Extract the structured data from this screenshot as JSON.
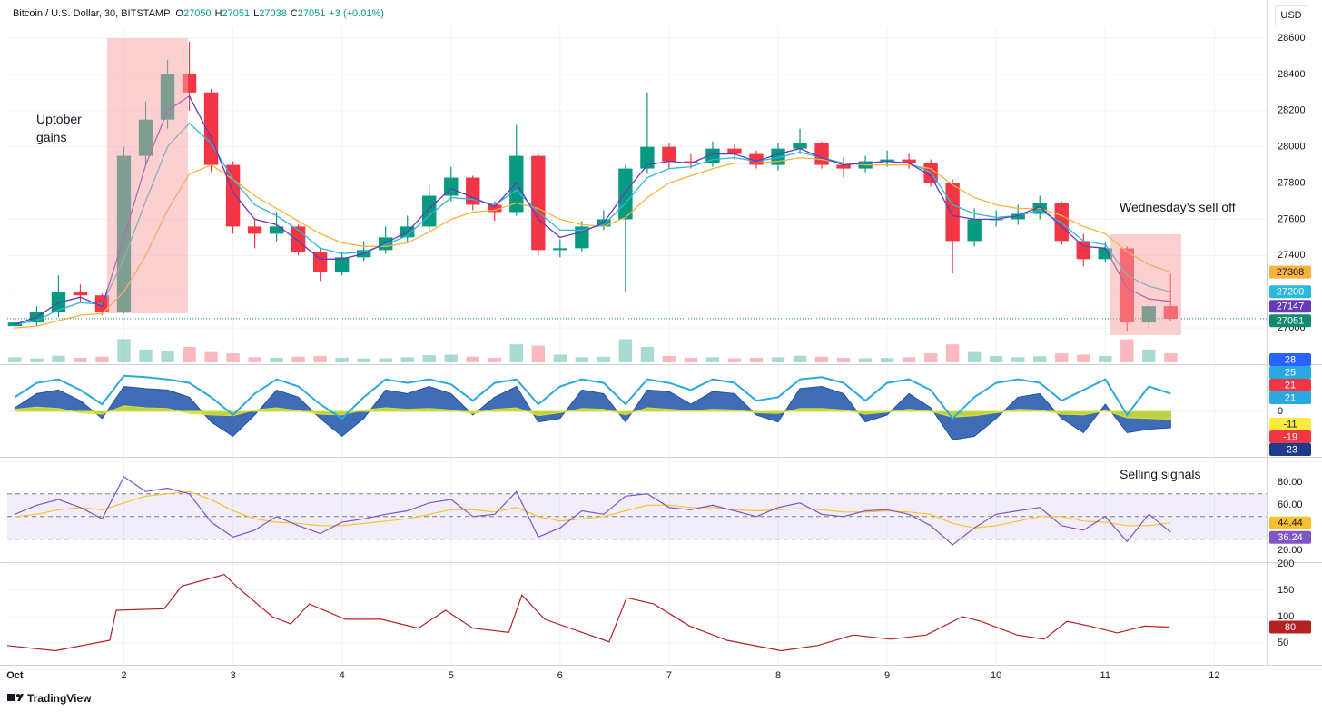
{
  "header": {
    "symbol": "Bitcoin / U.S. Dollar, 30, BITSTAMP",
    "ohlc": [
      {
        "label": "O",
        "value": 27050
      },
      {
        "label": "H",
        "value": 27051
      },
      {
        "label": "L",
        "value": 27038
      },
      {
        "label": "C",
        "value": 27051
      }
    ],
    "change": "+3 (+0.01%)",
    "currency": "USD"
  },
  "annotations": [
    "Uptober gains",
    "Wednesday’s sell off",
    "Selling signals"
  ],
  "footer": {
    "brand": "TradingView"
  },
  "chart_data": [
    {
      "type": "candlestick",
      "up_color": "#089981",
      "down_color": "#f23645",
      "price_line_color": "#138a6e",
      "xlim": [
        0.93,
        12.48
      ],
      "xticks": [
        {
          "value": 1,
          "label": "Oct"
        },
        2,
        3,
        4,
        5,
        6,
        7,
        8,
        9,
        10,
        11,
        12
      ],
      "ylim": [
        26800,
        28660
      ],
      "yticks": [
        27000,
        27200,
        27400,
        27600,
        27800,
        28000,
        28200,
        28400,
        28600
      ],
      "grid": true,
      "x": [
        1,
        1.2,
        1.4,
        1.6,
        1.8,
        2,
        2.2,
        2.4,
        2.6,
        2.8,
        3,
        3.2,
        3.4,
        3.6,
        3.8,
        4,
        4.2,
        4.4,
        4.6,
        4.8,
        5,
        5.2,
        5.4,
        5.6,
        5.8,
        6,
        6.2,
        6.4,
        6.6,
        6.8,
        7,
        7.2,
        7.4,
        7.6,
        7.8,
        8,
        8.2,
        8.4,
        8.6,
        8.8,
        9,
        9.2,
        9.4,
        9.6,
        9.8,
        10,
        10.2,
        10.4,
        10.6,
        10.8,
        11,
        11.2,
        11.4,
        11.6
      ],
      "open": [
        27010,
        27030,
        27090,
        27200,
        27180,
        27090,
        27950,
        28150,
        28400,
        28300,
        27900,
        27560,
        27520,
        27560,
        27420,
        27310,
        27390,
        27430,
        27500,
        27560,
        27730,
        27830,
        27680,
        27640,
        27950,
        27430,
        27440,
        27560,
        27600,
        27880,
        28000,
        27920,
        27910,
        27990,
        27960,
        27900,
        27990,
        28020,
        27900,
        27880,
        27920,
        27930,
        27910,
        27800,
        27480,
        27600,
        27600,
        27630,
        27690,
        27480,
        27380,
        27440,
        27030,
        27120
      ],
      "high": [
        27050,
        27120,
        27290,
        27240,
        27190,
        28000,
        28250,
        28480,
        28580,
        28320,
        27920,
        27600,
        27640,
        27570,
        27440,
        27420,
        27480,
        27560,
        27620,
        27790,
        27890,
        27840,
        27700,
        28120,
        27960,
        27490,
        27590,
        27650,
        27900,
        28300,
        28020,
        27960,
        28030,
        28010,
        27980,
        28020,
        28100,
        28030,
        27940,
        27950,
        27980,
        27960,
        27930,
        27820,
        27660,
        27650,
        27680,
        27730,
        27700,
        27520,
        27470,
        27450,
        27130,
        27300
      ],
      "low": [
        26990,
        27010,
        27060,
        27140,
        27070,
        27080,
        27900,
        28100,
        28200,
        27860,
        27520,
        27440,
        27480,
        27400,
        27260,
        27290,
        27370,
        27410,
        27470,
        27540,
        27700,
        27650,
        27590,
        27620,
        27400,
        27390,
        27420,
        27540,
        27200,
        27850,
        27880,
        27880,
        27890,
        27930,
        27880,
        27870,
        27960,
        27880,
        27830,
        27860,
        27890,
        27880,
        27780,
        27300,
        27450,
        27560,
        27570,
        27600,
        27460,
        27340,
        27360,
        26980,
        27000,
        27038
      ],
      "close": [
        27030,
        27090,
        27200,
        27180,
        27090,
        27950,
        28150,
        28400,
        28300,
        27900,
        27560,
        27520,
        27560,
        27420,
        27310,
        27390,
        27430,
        27500,
        27560,
        27730,
        27830,
        27680,
        27640,
        27950,
        27430,
        27440,
        27560,
        27600,
        27880,
        28000,
        27920,
        27910,
        27990,
        27960,
        27900,
        27990,
        28020,
        27900,
        27880,
        27920,
        27930,
        27910,
        27800,
        27480,
        27600,
        27600,
        27630,
        27690,
        27480,
        27380,
        27440,
        27030,
        27120,
        27051
      ],
      "series": [
        {
          "color": "#f7b23b",
          "values": [
            27000,
            27010,
            27040,
            27070,
            27080,
            27200,
            27400,
            27650,
            27850,
            27900,
            27820,
            27730,
            27660,
            27590,
            27520,
            27470,
            27450,
            27450,
            27470,
            27530,
            27600,
            27640,
            27650,
            27690,
            27660,
            27600,
            27570,
            27560,
            27610,
            27720,
            27800,
            27840,
            27880,
            27910,
            27910,
            27920,
            27940,
            27930,
            27910,
            27900,
            27900,
            27900,
            27880,
            27790,
            27720,
            27680,
            27660,
            27660,
            27620,
            27560,
            27520,
            27420,
            27350,
            27308
          ]
        },
        {
          "color": "#2db7d9",
          "values": [
            27020,
            27040,
            27100,
            27140,
            27130,
            27380,
            27700,
            28000,
            28130,
            28020,
            27820,
            27680,
            27620,
            27540,
            27440,
            27410,
            27420,
            27460,
            27510,
            27620,
            27720,
            27710,
            27680,
            27760,
            27640,
            27540,
            27540,
            27570,
            27690,
            27830,
            27880,
            27890,
            27930,
            27940,
            27920,
            27940,
            27970,
            27940,
            27910,
            27910,
            27920,
            27910,
            27860,
            27680,
            27630,
            27610,
            27620,
            27650,
            27580,
            27480,
            27460,
            27290,
            27230,
            27200
          ]
        },
        {
          "color": "#673ab7",
          "values": [
            27020,
            27060,
            27140,
            27170,
            27120,
            27500,
            27900,
            28200,
            28280,
            28050,
            27750,
            27600,
            27570,
            27480,
            27380,
            27380,
            27410,
            27470,
            27530,
            27660,
            27770,
            27720,
            27670,
            27800,
            27600,
            27500,
            27530,
            27580,
            27750,
            27900,
            27920,
            27910,
            27960,
            27960,
            27920,
            27960,
            27990,
            27940,
            27900,
            27910,
            27920,
            27910,
            27840,
            27620,
            27600,
            27600,
            27620,
            27670,
            27560,
            27450,
            27440,
            27220,
            27160,
            27147
          ]
        }
      ]
    },
    {
      "type": "bar",
      "xlim": [
        0.93,
        12.48
      ],
      "ylim": [
        0,
        1200
      ],
      "x": [
        1,
        1.2,
        1.4,
        1.6,
        1.8,
        2,
        2.2,
        2.4,
        2.6,
        2.8,
        3,
        3.2,
        3.4,
        3.6,
        3.8,
        4,
        4.2,
        4.4,
        4.6,
        4.8,
        5,
        5.2,
        5.4,
        5.6,
        5.8,
        6,
        6.2,
        6.4,
        6.6,
        6.8,
        7,
        7.2,
        7.4,
        7.6,
        7.8,
        8,
        8.2,
        8.4,
        8.6,
        8.8,
        9,
        9.2,
        9.4,
        9.6,
        9.8,
        10,
        10.2,
        10.4,
        10.6,
        10.8,
        11,
        11.2,
        11.4,
        11.6
      ],
      "values": [
        200,
        150,
        260,
        180,
        220,
        900,
        500,
        450,
        600,
        400,
        350,
        200,
        180,
        220,
        250,
        180,
        150,
        160,
        200,
        280,
        300,
        220,
        180,
        700,
        650,
        300,
        200,
        220,
        900,
        600,
        250,
        180,
        200,
        160,
        180,
        200,
        260,
        220,
        180,
        160,
        170,
        200,
        350,
        700,
        400,
        250,
        200,
        240,
        350,
        300,
        250,
        900,
        500,
        350
      ]
    },
    {
      "type": "area",
      "xlim": [
        0.93,
        12.48
      ],
      "ylim": [
        -60,
        65
      ],
      "yticks": [
        0
      ],
      "grid": true,
      "x": [
        1,
        1.2,
        1.4,
        1.6,
        1.8,
        2,
        2.2,
        2.4,
        2.6,
        2.8,
        3,
        3.2,
        3.4,
        3.6,
        3.8,
        4,
        4.2,
        4.4,
        4.6,
        4.8,
        5,
        5.2,
        5.4,
        5.6,
        5.8,
        6,
        6.2,
        6.4,
        6.6,
        6.8,
        7,
        7.2,
        7.4,
        7.6,
        7.8,
        8,
        8.2,
        8.4,
        8.6,
        8.8,
        9,
        9.2,
        9.4,
        9.6,
        9.8,
        10,
        10.2,
        10.4,
        10.6,
        10.8,
        11,
        11.2,
        11.4,
        11.6
      ],
      "series": [
        {
          "style": "area",
          "color": "#1e52a8",
          "values": [
            5,
            25,
            30,
            15,
            -10,
            35,
            32,
            30,
            20,
            -15,
            -35,
            -5,
            30,
            20,
            -10,
            -35,
            -10,
            30,
            25,
            35,
            25,
            -5,
            20,
            35,
            -15,
            -10,
            30,
            25,
            -15,
            30,
            28,
            10,
            28,
            25,
            -5,
            -15,
            32,
            35,
            25,
            -15,
            -5,
            25,
            5,
            -40,
            -35,
            -10,
            20,
            25,
            -10,
            -30,
            10,
            -30,
            -25,
            -23
          ]
        },
        {
          "style": "area",
          "color": "#d4e23a",
          "values": [
            3,
            6,
            4,
            -2,
            -4,
            8,
            5,
            4,
            -3,
            -5,
            -6,
            2,
            5,
            1,
            -4,
            -5,
            2,
            5,
            3,
            4,
            2,
            -3,
            3,
            5,
            -6,
            -2,
            4,
            3,
            -5,
            5,
            3,
            1,
            3,
            2,
            -2,
            -3,
            4,
            4,
            2,
            -4,
            -1,
            3,
            0,
            -8,
            -6,
            -2,
            3,
            2,
            -4,
            -5,
            1,
            -9,
            -10,
            -11
          ]
        },
        {
          "style": "line",
          "color": "#29a9e0",
          "values": [
            20,
            40,
            45,
            30,
            10,
            50,
            48,
            45,
            40,
            20,
            -5,
            25,
            45,
            35,
            10,
            -10,
            20,
            45,
            40,
            45,
            38,
            15,
            40,
            45,
            10,
            35,
            45,
            40,
            10,
            45,
            40,
            30,
            45,
            40,
            15,
            20,
            45,
            48,
            40,
            15,
            40,
            45,
            30,
            -10,
            20,
            40,
            45,
            40,
            15,
            30,
            45,
            -5,
            35,
            25
          ]
        }
      ],
      "badges": [
        {
          "value": 28,
          "color": "#2962ff"
        },
        {
          "value": 25,
          "color": "#29a9e0"
        },
        {
          "value": 21,
          "color": "#f23645"
        },
        {
          "value": 21,
          "color": "#29a9e0"
        },
        {
          "value": -11,
          "color": "#ffeb3b"
        },
        {
          "value": -19,
          "color": "#f23645"
        },
        {
          "value": -23,
          "color": "#1e3a8a"
        }
      ]
    },
    {
      "type": "line",
      "xlim": [
        0.93,
        12.48
      ],
      "ylim": [
        9,
        101
      ],
      "yticks": [
        {
          "value": 80,
          "label": "80.00"
        },
        {
          "value": 60,
          "label": "60.00"
        },
        {
          "value": 20,
          "label": "20.00"
        }
      ],
      "bands": [
        30,
        50,
        70
      ],
      "band_color": "#7e57c2",
      "x": [
        1,
        1.2,
        1.4,
        1.6,
        1.8,
        2,
        2.2,
        2.4,
        2.6,
        2.8,
        3,
        3.2,
        3.4,
        3.6,
        3.8,
        4,
        4.2,
        4.4,
        4.6,
        4.8,
        5,
        5.2,
        5.4,
        5.6,
        5.8,
        6,
        6.2,
        6.4,
        6.6,
        6.8,
        7,
        7.2,
        7.4,
        7.6,
        7.8,
        8,
        8.2,
        8.4,
        8.6,
        8.8,
        9,
        9.2,
        9.4,
        9.6,
        9.8,
        10,
        10.2,
        10.4,
        10.6,
        10.8,
        11,
        11.2,
        11.4,
        11.6
      ],
      "series": [
        {
          "color": "#fbc02d",
          "values": [
            50,
            52,
            56,
            58,
            56,
            62,
            68,
            70,
            72,
            65,
            55,
            48,
            45,
            44,
            42,
            42,
            44,
            46,
            48,
            52,
            56,
            56,
            54,
            58,
            50,
            46,
            48,
            50,
            55,
            60,
            60,
            58,
            58,
            56,
            55,
            56,
            57,
            56,
            54,
            54,
            55,
            54,
            52,
            44,
            40,
            42,
            46,
            50,
            50,
            46,
            45,
            42,
            42,
            44.44
          ]
        },
        {
          "color": "#7e57c2",
          "values": [
            52,
            60,
            65,
            58,
            48,
            85,
            72,
            75,
            70,
            45,
            32,
            38,
            50,
            42,
            35,
            45,
            48,
            52,
            55,
            62,
            65,
            50,
            52,
            72,
            32,
            40,
            55,
            52,
            68,
            70,
            58,
            56,
            60,
            55,
            50,
            58,
            62,
            52,
            50,
            55,
            56,
            52,
            42,
            25,
            40,
            52,
            55,
            58,
            42,
            38,
            50,
            28,
            52,
            36.24
          ]
        }
      ]
    },
    {
      "type": "line",
      "xlim": [
        0.93,
        12.48
      ],
      "ylim": [
        10,
        202
      ],
      "yticks": [
        50,
        100,
        150,
        200
      ],
      "grid": true,
      "x": [
        0.93,
        1.37,
        1.87,
        1.93,
        2.37,
        2.53,
        2.92,
        3.03,
        3.36,
        3.53,
        3.7,
        4.03,
        4.36,
        4.7,
        4.95,
        5.2,
        5.53,
        5.65,
        5.86,
        6.2,
        6.45,
        6.61,
        6.86,
        7.19,
        7.53,
        8.03,
        8.36,
        8.69,
        9.03,
        9.36,
        9.69,
        9.86,
        10.19,
        10.44,
        10.65,
        10.86,
        11.11,
        11.36,
        11.59
      ],
      "series": [
        {
          "color": "#b22222",
          "values": [
            45,
            35,
            55,
            112,
            115,
            158,
            180,
            158,
            100,
            86,
            124,
            95,
            95,
            78,
            112,
            78,
            70,
            141,
            95,
            70,
            52,
            136,
            124,
            82,
            55,
            35,
            45,
            65,
            57,
            65,
            100,
            91,
            65,
            57,
            91,
            82,
            69,
            82,
            80
          ]
        }
      ]
    }
  ]
}
